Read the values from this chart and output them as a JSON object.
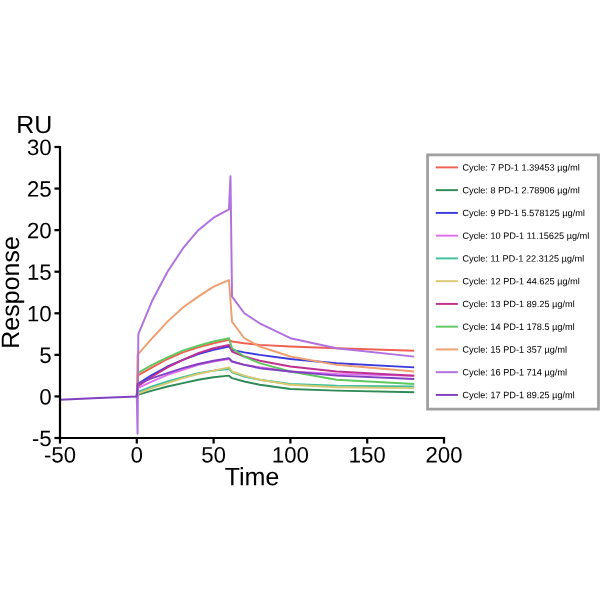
{
  "chart_data": {
    "type": "line",
    "xlabel": "Time",
    "ylabel": "Response",
    "annotations": [
      "RU"
    ],
    "x": [
      -50,
      -25,
      0,
      0.5,
      10,
      20,
      30,
      40,
      50,
      60,
      62,
      70,
      80,
      100,
      130,
      180
    ],
    "xlim": [
      -50,
      200
    ],
    "xticks": [
      -50,
      0,
      50,
      100,
      150,
      200
    ],
    "ylim": [
      -5,
      30
    ],
    "yticks": [
      -5,
      0,
      5,
      10,
      15,
      20,
      25,
      30
    ],
    "grid": false,
    "legend": "right",
    "marker": "none",
    "line_style": "solid",
    "series": [
      {
        "name": "Cycle: 7 PD-1 1.39453 µg/ml",
        "color": "#f06050",
        "values": [
          null,
          null,
          0,
          2.5,
          3.5,
          4.5,
          5.3,
          5.9,
          6.4,
          6.8,
          6.6,
          6.4,
          6.2,
          6,
          5.8,
          5.5
        ]
      },
      {
        "name": "Cycle: 8 PD-1 2.78906 µg/ml",
        "color": "#2e8b57",
        "values": [
          null,
          null,
          0,
          0.2,
          0.7,
          1.2,
          1.6,
          2,
          2.3,
          2.5,
          2.2,
          1.8,
          1.4,
          0.9,
          0.7,
          0.5
        ]
      },
      {
        "name": "Cycle: 9 PD-1 5.578125 µg/ml",
        "color": "#3a3ae0",
        "values": [
          null,
          null,
          0,
          1.5,
          2.6,
          3.6,
          4.4,
          5.1,
          5.6,
          6,
          5.6,
          5.3,
          5,
          4.5,
          4,
          3.5
        ]
      },
      {
        "name": "Cycle: 10 PD-1 11.15625 µg/ml",
        "color": "#e070f0",
        "values": [
          null,
          null,
          0,
          1,
          1.8,
          2.6,
          3.2,
          3.8,
          4.2,
          4.5,
          4.2,
          3.8,
          3.5,
          3,
          2.7,
          2.5
        ]
      },
      {
        "name": "Cycle: 11 PD-1 22.3125 µg/ml",
        "color": "#40c0a0",
        "values": [
          null,
          null,
          0,
          0.5,
          1.2,
          1.8,
          2.3,
          2.8,
          3.1,
          3.3,
          2.9,
          2.4,
          2,
          1.5,
          1.3,
          1.2
        ]
      },
      {
        "name": "Cycle: 12 PD-1 44.625 µg/ml",
        "color": "#d8c870",
        "values": [
          null,
          null,
          0,
          0.3,
          1,
          1.6,
          2.2,
          2.7,
          3.1,
          3.5,
          3,
          2.5,
          2,
          1.4,
          1.1,
          1
        ]
      },
      {
        "name": "Cycle: 13 PD-1 89.25 µg/ml",
        "color": "#c03090",
        "values": [
          null,
          null,
          0,
          1.2,
          2.4,
          3.5,
          4.4,
          5.2,
          5.8,
          6.2,
          5.4,
          4.8,
          4.3,
          3.6,
          3,
          2.5
        ]
      },
      {
        "name": "Cycle: 14 PD-1 178.5 µg/ml",
        "color": "#60c860",
        "values": [
          null,
          null,
          0,
          2.8,
          3.8,
          4.7,
          5.5,
          6.1,
          6.6,
          7,
          5.8,
          4.8,
          4,
          3,
          2,
          1.5
        ]
      },
      {
        "name": "Cycle: 15 PD-1 357 µg/ml",
        "color": "#f0a070",
        "values": [
          null,
          null,
          0,
          5,
          7,
          9,
          10.7,
          12,
          13.2,
          14,
          9,
          7,
          6,
          4.8,
          3.8,
          3
        ]
      },
      {
        "name": "Cycle: 16 PD-1 714 µg/ml",
        "color": "#b070e0",
        "x": [
          0,
          0.5,
          1,
          10,
          20,
          30,
          40,
          50,
          60,
          61,
          62,
          70,
          80,
          100,
          130,
          180
        ],
        "values": [
          0,
          -4.5,
          7.5,
          11.5,
          15,
          17.8,
          20,
          21.5,
          22.5,
          26.5,
          12,
          10,
          8.8,
          7,
          5.8,
          4.8
        ]
      },
      {
        "name": "Cycle: 17 PD-1 89.25 µg/ml",
        "color": "#8040c0",
        "values": [
          -0.4,
          -0.2,
          0,
          1.5,
          2.2,
          2.8,
          3.4,
          3.9,
          4.3,
          4.6,
          4.2,
          3.8,
          3.4,
          3,
          2.5,
          2.1
        ]
      }
    ]
  }
}
